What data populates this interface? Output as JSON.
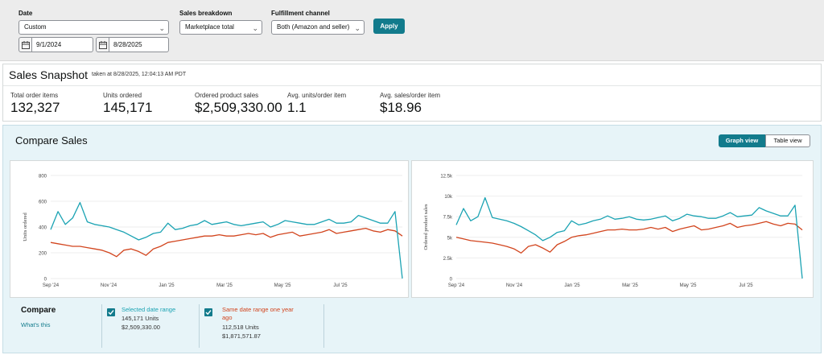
{
  "filters": {
    "date_label": "Date",
    "date_select": "Custom",
    "start_date": "9/1/2024",
    "end_date": "8/28/2025",
    "breakdown_label": "Sales breakdown",
    "breakdown_select": "Marketplace total",
    "fulfillment_label": "Fulfillment channel",
    "fulfillment_select": "Both (Amazon and seller)",
    "apply_label": "Apply"
  },
  "snapshot": {
    "title": "Sales Snapshot",
    "taken": "taken at 8/28/2025, 12:04:13 AM PDT",
    "metrics": [
      {
        "label": "Total order items",
        "value": "132,327"
      },
      {
        "label": "Units ordered",
        "value": "145,171"
      },
      {
        "label": "Ordered product sales",
        "value": "$2,509,330.00"
      },
      {
        "label": "Avg. units/order item",
        "value": "1.1"
      },
      {
        "label": "Avg. sales/order item",
        "value": "$18.96"
      }
    ]
  },
  "compare": {
    "title": "Compare Sales",
    "graph_view": "Graph view",
    "table_view": "Table view",
    "legend_title": "Compare",
    "whats_this": "What's this",
    "selected": {
      "name": "Selected date range",
      "units": "145,171 Units",
      "sales": "$2,509,330.00"
    },
    "previous": {
      "name": "Same date range one year ago",
      "units": "112,518 Units",
      "sales": "$1,871,571.87"
    }
  },
  "colors": {
    "current": "#1ba3b3",
    "previous": "#d2451e",
    "accent": "#127b8c"
  },
  "chart_data": [
    {
      "type": "line",
      "ylabel": "Units ordered",
      "ylim": [
        0,
        800
      ],
      "yticks": [
        "0",
        "200",
        "400",
        "600",
        "800"
      ],
      "xticks": [
        "Sep '24",
        "Nov '24",
        "Jan '25",
        "Mar '25",
        "May '25",
        "Jul '25"
      ],
      "series": [
        {
          "name": "Selected date range",
          "values": [
            380,
            520,
            420,
            470,
            590,
            440,
            420,
            410,
            400,
            380,
            360,
            330,
            300,
            320,
            350,
            360,
            430,
            380,
            390,
            410,
            420,
            450,
            420,
            430,
            440,
            420,
            410,
            420,
            430,
            440,
            400,
            420,
            450,
            440,
            430,
            420,
            420,
            440,
            460,
            430,
            430,
            440,
            490,
            470,
            450,
            430,
            430,
            520,
            0
          ]
        },
        {
          "name": "Same date range one year ago",
          "values": [
            280,
            270,
            260,
            250,
            250,
            240,
            230,
            220,
            200,
            170,
            220,
            230,
            210,
            180,
            230,
            250,
            280,
            290,
            300,
            310,
            320,
            330,
            330,
            340,
            330,
            330,
            340,
            350,
            340,
            350,
            320,
            340,
            350,
            360,
            330,
            340,
            350,
            360,
            380,
            350,
            360,
            370,
            380,
            390,
            370,
            360,
            380,
            370,
            330
          ]
        }
      ]
    },
    {
      "type": "line",
      "ylabel": "Ordered product sales",
      "ylim": [
        0,
        12500
      ],
      "yticks": [
        "0",
        "2.5k",
        "5k",
        "7.5k",
        "10k",
        "12.5k"
      ],
      "xticks": [
        "Sep '24",
        "Nov '24",
        "Jan '25",
        "Mar '25",
        "May '25",
        "Jul '25"
      ],
      "series": [
        {
          "name": "Selected date range",
          "values": [
            6500,
            8500,
            7000,
            7500,
            9800,
            7400,
            7200,
            7000,
            6700,
            6300,
            5800,
            5300,
            4600,
            5000,
            5600,
            5800,
            7000,
            6500,
            6700,
            7000,
            7200,
            7600,
            7200,
            7300,
            7500,
            7200,
            7100,
            7200,
            7400,
            7600,
            7000,
            7300,
            7800,
            7600,
            7500,
            7300,
            7300,
            7600,
            8000,
            7500,
            7600,
            7700,
            8600,
            8200,
            7900,
            7600,
            7600,
            8900,
            0
          ]
        },
        {
          "name": "Same date range one year ago",
          "values": [
            5000,
            4800,
            4600,
            4500,
            4400,
            4300,
            4100,
            3900,
            3600,
            3100,
            3900,
            4100,
            3700,
            3200,
            4100,
            4500,
            5000,
            5200,
            5300,
            5500,
            5700,
            5900,
            5900,
            6000,
            5900,
            5900,
            6000,
            6200,
            6000,
            6200,
            5700,
            6000,
            6200,
            6400,
            5900,
            6000,
            6200,
            6400,
            6700,
            6200,
            6400,
            6500,
            6700,
            6900,
            6600,
            6400,
            6700,
            6600,
            5900
          ]
        }
      ]
    }
  ]
}
